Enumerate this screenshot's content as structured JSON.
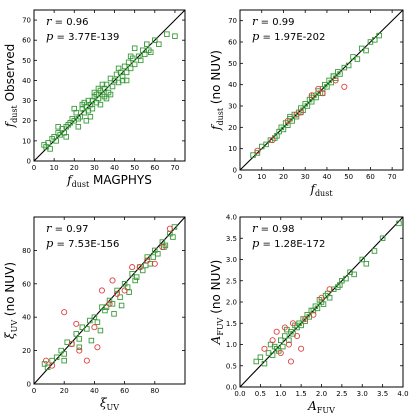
{
  "chart_data": [
    {
      "type": "scatter",
      "panel": "top-left",
      "xlabel": "f_dust MAGPHYS",
      "ylabel": "f_dust Observed",
      "xlim": [
        0,
        75
      ],
      "ylim": [
        0,
        75
      ],
      "xticks": [
        0,
        10,
        20,
        30,
        40,
        50,
        60,
        70
      ],
      "yticks": [
        0,
        10,
        20,
        30,
        40,
        50,
        60,
        70
      ],
      "annotations": [
        "r = 0.96",
        "p = 3.77E-139"
      ],
      "one_to_one_line": true,
      "series": [
        {
          "marker": "square",
          "color": "#3a9a3a",
          "x": [
            5,
            6,
            7,
            8,
            9,
            10,
            11,
            12,
            13,
            14,
            15,
            16,
            17,
            18,
            19,
            20,
            21,
            22,
            23,
            24,
            25,
            25,
            26,
            27,
            27,
            28,
            29,
            29,
            30,
            31,
            31,
            32,
            33,
            33,
            34,
            35,
            35,
            36,
            37,
            38,
            39,
            40,
            41,
            42,
            43,
            44,
            45,
            46,
            47,
            48,
            49,
            50,
            52,
            54,
            55,
            56,
            58,
            60,
            62,
            66,
            70,
            16,
            22,
            24,
            28,
            30,
            34,
            38,
            42,
            46,
            50,
            12,
            20,
            26,
            32,
            36,
            44,
            48,
            53,
            57
          ],
          "y": [
            8,
            7,
            9,
            6,
            11,
            12,
            10,
            14,
            13,
            16,
            14,
            17,
            18,
            19,
            21,
            20,
            24,
            21,
            22,
            26,
            24,
            29,
            27,
            25,
            30,
            28,
            30,
            26,
            32,
            29,
            33,
            31,
            35,
            28,
            33,
            36,
            32,
            38,
            34,
            41,
            37,
            40,
            43,
            39,
            44,
            42,
            47,
            44,
            49,
            46,
            51,
            48,
            52,
            55,
            53,
            58,
            54,
            60,
            58,
            63,
            62,
            12,
            17,
            28,
            22,
            34,
            38,
            33,
            46,
            40,
            56,
            17,
            26,
            20,
            36,
            31,
            40,
            52,
            50,
            55
          ]
        }
      ]
    },
    {
      "type": "scatter",
      "panel": "top-right",
      "xlabel": "f_dust",
      "ylabel": "f_dust (no NUV)",
      "xlim": [
        0,
        75
      ],
      "ylim": [
        0,
        75
      ],
      "xticks": [
        0,
        10,
        20,
        30,
        40,
        50,
        60,
        70
      ],
      "yticks": [
        0,
        10,
        20,
        30,
        40,
        50,
        60,
        70
      ],
      "annotations": [
        "r = 0.99",
        "p = 1.97E-202"
      ],
      "one_to_one_line": true,
      "series": [
        {
          "marker": "square",
          "color": "#3a9a3a",
          "x": [
            6,
            8,
            10,
            12,
            14,
            16,
            18,
            19,
            20,
            21,
            22,
            23,
            24,
            25,
            26,
            27,
            28,
            29,
            30,
            31,
            32,
            33,
            34,
            35,
            36,
            37,
            38,
            39,
            40,
            41,
            42,
            43,
            44,
            45,
            46,
            48,
            50,
            52,
            54,
            56,
            58,
            60,
            62,
            64,
            17,
            23,
            28,
            33,
            38,
            43
          ],
          "y": [
            7,
            8,
            11,
            12,
            14,
            15,
            18,
            20,
            19,
            22,
            21,
            24,
            23,
            26,
            25,
            27,
            29,
            28,
            31,
            30,
            33,
            32,
            35,
            34,
            37,
            36,
            38,
            40,
            39,
            42,
            41,
            44,
            43,
            46,
            45,
            48,
            49,
            53,
            52,
            57,
            56,
            60,
            61,
            63,
            16,
            25,
            27,
            34,
            36,
            44
          ]
        },
        {
          "marker": "circle",
          "color": "#e04040",
          "x": [
            8,
            15,
            22,
            28,
            33,
            38,
            44,
            48,
            26,
            36
          ],
          "y": [
            9,
            14,
            23,
            27,
            35,
            36,
            42,
            39,
            26,
            38
          ]
        }
      ]
    },
    {
      "type": "scatter",
      "panel": "bottom-left",
      "xlabel": "ξ_UV",
      "ylabel": "ξ_UV (no NUV)",
      "xlim": [
        0,
        100
      ],
      "ylim": [
        0,
        100
      ],
      "xticks": [
        0,
        20,
        40,
        60,
        80
      ],
      "yticks": [
        0,
        20,
        40,
        60,
        80
      ],
      "annotations": [
        "r = 0.97",
        "p = 7.53E-156"
      ],
      "one_to_one_line": true,
      "series": [
        {
          "marker": "square",
          "color": "#3a9a3a",
          "x": [
            7,
            9,
            12,
            15,
            18,
            20,
            22,
            25,
            28,
            30,
            32,
            35,
            37,
            40,
            42,
            45,
            47,
            50,
            52,
            55,
            57,
            60,
            62,
            65,
            67,
            70,
            72,
            75,
            77,
            80,
            82,
            85,
            87,
            90,
            92,
            93,
            38,
            44,
            53,
            58,
            63,
            68,
            74,
            79,
            86,
            20,
            30,
            48
          ],
          "y": [
            12,
            10,
            14,
            16,
            20,
            18,
            25,
            24,
            30,
            27,
            34,
            33,
            38,
            40,
            37,
            46,
            44,
            50,
            48,
            56,
            52,
            60,
            58,
            66,
            62,
            70,
            68,
            76,
            72,
            80,
            78,
            85,
            83,
            90,
            88,
            94,
            26,
            32,
            42,
            47,
            55,
            64,
            71,
            76,
            82,
            14,
            22,
            46
          ]
        },
        {
          "marker": "circle",
          "color": "#e04040",
          "x": [
            8,
            12,
            20,
            25,
            30,
            35,
            40,
            45,
            50,
            55,
            60,
            65,
            70,
            75,
            80,
            85,
            90,
            28,
            42,
            52
          ],
          "y": [
            14,
            11,
            43,
            24,
            20,
            14,
            34,
            56,
            48,
            54,
            56,
            70,
            70,
            74,
            72,
            82,
            93,
            36,
            22,
            62
          ]
        }
      ]
    },
    {
      "type": "scatter",
      "panel": "bottom-right",
      "xlabel": "A_FUV",
      "ylabel": "A_FUV (no NUV)",
      "xlim": [
        0,
        4.0
      ],
      "ylim": [
        0,
        4.0
      ],
      "xticks": [
        0.0,
        0.5,
        1.0,
        1.5,
        2.0,
        2.5,
        3.0,
        3.5,
        4.0
      ],
      "yticks": [
        0.0,
        0.5,
        1.0,
        1.5,
        2.0,
        2.5,
        3.0,
        3.5,
        4.0
      ],
      "annotations": [
        "r = 0.98",
        "p = 1.28E-172"
      ],
      "one_to_one_line": true,
      "series": [
        {
          "marker": "square",
          "color": "#3a9a3a",
          "x": [
            0.4,
            0.5,
            0.6,
            0.7,
            0.8,
            0.85,
            0.9,
            1.0,
            1.05,
            1.1,
            1.2,
            1.25,
            1.3,
            1.4,
            1.45,
            1.5,
            1.6,
            1.65,
            1.7,
            1.8,
            1.85,
            1.9,
            2.0,
            2.05,
            2.1,
            2.2,
            2.3,
            2.4,
            2.5,
            2.6,
            2.7,
            2.8,
            3.0,
            3.1,
            3.3,
            3.5,
            3.9,
            0.75,
            1.15,
            1.35,
            1.55,
            1.75,
            1.95,
            2.15,
            2.45,
            0.95
          ],
          "y": [
            0.6,
            0.7,
            0.55,
            0.8,
            0.75,
            0.95,
            0.9,
            1.1,
            0.95,
            1.2,
            1.1,
            1.3,
            1.25,
            1.4,
            1.5,
            1.45,
            1.55,
            1.7,
            1.65,
            1.8,
            1.9,
            1.85,
            2.0,
            1.95,
            2.15,
            2.1,
            2.3,
            2.35,
            2.5,
            2.55,
            2.7,
            2.65,
            3.0,
            2.9,
            3.2,
            3.5,
            3.85,
            1.0,
            1.35,
            1.45,
            1.6,
            1.8,
            2.05,
            2.2,
            2.4,
            0.85
          ]
        },
        {
          "marker": "circle",
          "color": "#e04040",
          "x": [
            0.6,
            0.9,
            1.0,
            1.1,
            1.2,
            1.3,
            1.4,
            1.5,
            1.6,
            1.8,
            2.0,
            2.2,
            1.25,
            0.8
          ],
          "y": [
            0.9,
            1.3,
            0.8,
            1.4,
            1.0,
            1.5,
            1.2,
            0.9,
            1.6,
            1.7,
            2.1,
            2.3,
            0.6,
            1.1
          ]
        }
      ]
    }
  ]
}
